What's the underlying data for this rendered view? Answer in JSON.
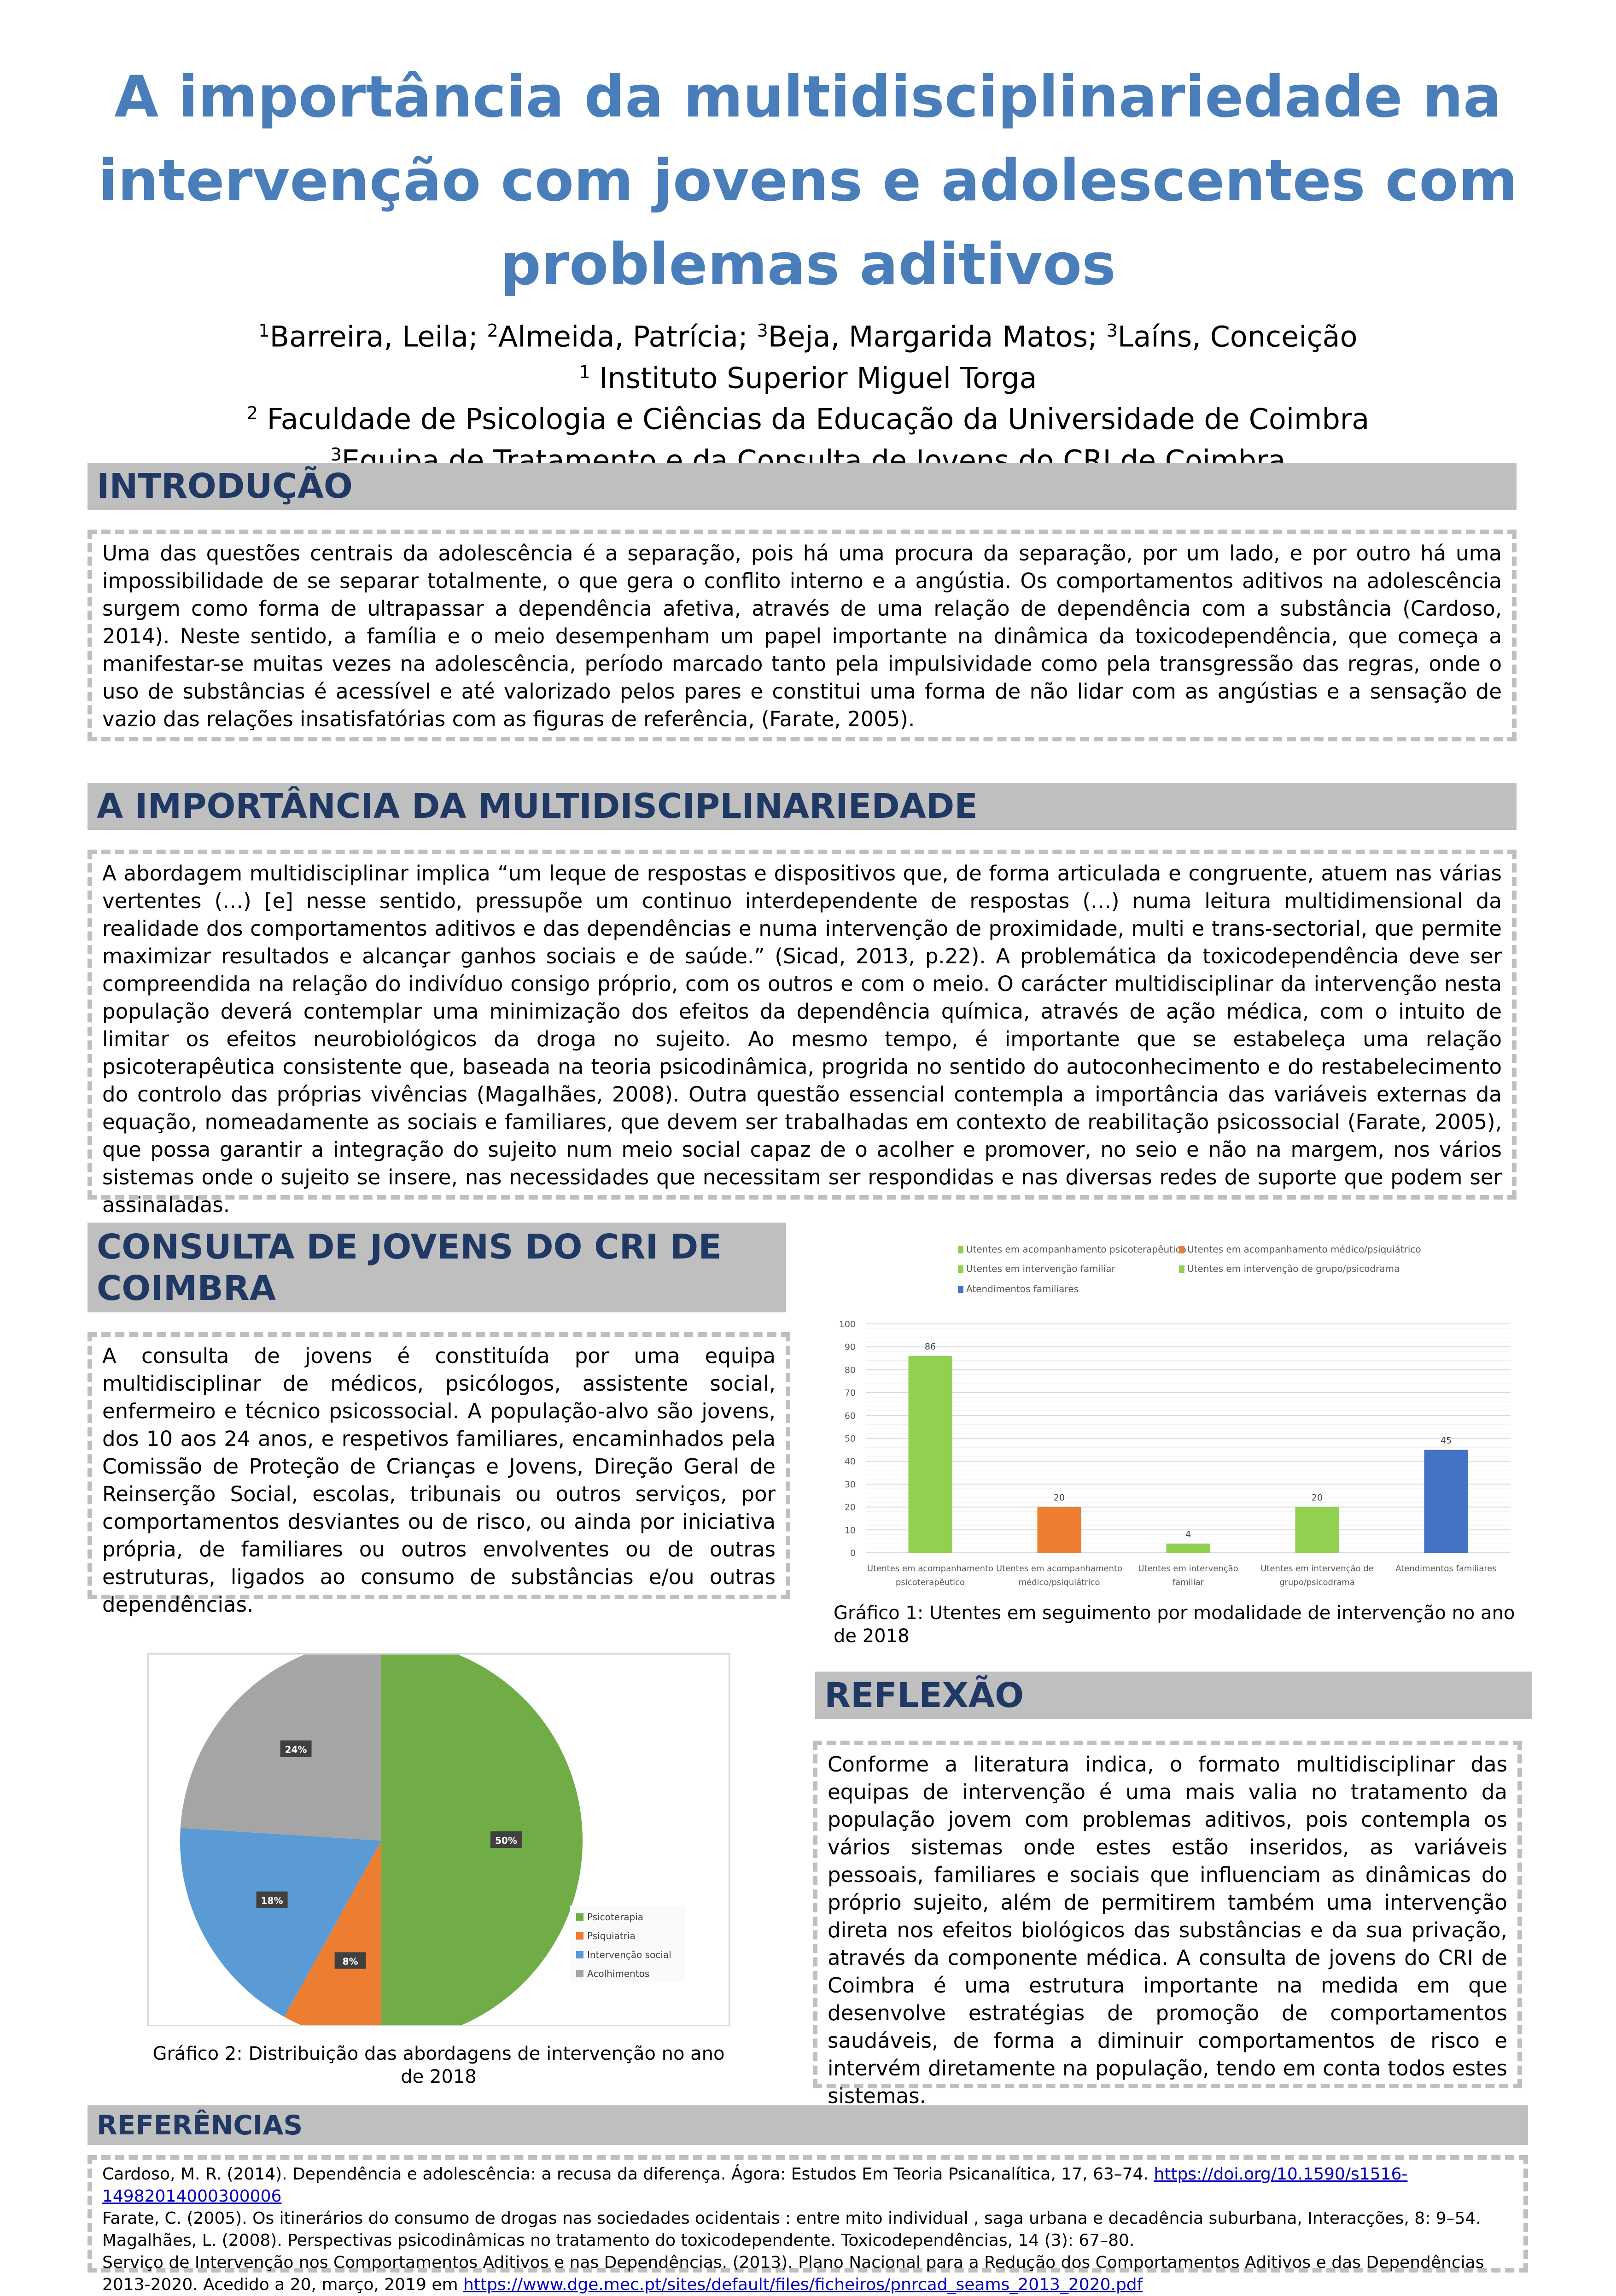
{
  "title": "A importância da multidisciplinariedade na intervenção com jovens e adolescentes com problemas aditivos",
  "authors": [
    {
      "sup": "1",
      "name": "Barreira, Leila; "
    },
    {
      "sup": "2",
      "name": "Almeida, Patrícia; "
    },
    {
      "sup": "3",
      "name": "Beja, Margarida Matos; "
    },
    {
      "sup": "3",
      "name": "Laíns, Conceição"
    }
  ],
  "affiliations": [
    {
      "sup": "1",
      "name": " Instituto Superior Miguel Torga"
    },
    {
      "sup": "2",
      "name": " Faculdade de Psicologia e Ciências da Educação da Universidade de Coimbra"
    },
    {
      "sup": "3",
      "name": "Equipa de Tratamento e da Consulta de Jovens do CRI de Coimbra"
    }
  ],
  "sections": {
    "intro": {
      "heading": "INTRODUÇÃO",
      "text": "Uma das questões centrais da adolescência é a separação, pois há uma procura da separação, por um lado, e por outro há uma impossibilidade de se separar totalmente, o que gera o conflito interno e a angústia. Os comportamentos aditivos na adolescência surgem como forma de ultrapassar a dependência afetiva, através de uma relação de dependência com a substância (Cardoso, 2014). Neste sentido, a família e o meio desempenham um papel importante na dinâmica da toxicodependência, que começa a manifestar-se muitas vezes na adolescência, período marcado tanto pela impulsividade como pela transgressão das regras, onde o uso de substâncias é acessível e até valorizado pelos pares e constitui uma forma de não lidar com as angústias e a sensação de vazio das relações insatisfatórias com as figuras de referência, (Farate, 2005)."
    },
    "multi": {
      "heading": "A IMPORTÂNCIA DA MULTIDISCIPLINARIEDADE",
      "text": "A abordagem multidisciplinar implica “um leque de respostas e dispositivos que, de forma articulada e congruente, atuem nas várias vertentes (…) [e] nesse sentido, pressupõe um continuo interdependente de respostas (…) numa leitura multidimensional da realidade dos comportamentos aditivos e das dependências e numa intervenção de proximidade, multi e trans-sectorial, que permite maximizar resultados e alcançar ganhos sociais e de saúde.”  (Sicad, 2013, p.22). A problemática da toxicodependência deve ser compreendida na relação do indivíduo consigo próprio, com os outros e com o meio. O carácter multidisciplinar da intervenção nesta população deverá contemplar uma minimização dos efeitos da dependência química, através de ação médica, com o intuito de limitar os efeitos neurobiológicos da droga no sujeito. Ao mesmo tempo, é importante que se estabeleça uma relação psicoterapêutica consistente que, baseada na teoria psicodinâmica, progrida no sentido do autoconhecimento e do restabelecimento do controlo das próprias vivências (Magalhães, 2008). Outra questão essencial contempla a importância das variáveis externas da equação, nomeadamente as sociais e familiares, que devem ser trabalhadas em contexto de reabilitação psicossocial (Farate, 2005), que possa garantir a integração do sujeito num meio social capaz de o acolher e promover, no seio e não na margem, nos vários sistemas onde o sujeito se insere, nas necessidades que necessitam ser respondidas e nas diversas redes de suporte que podem ser assinaladas."
    },
    "consulta": {
      "heading": "CONSULTA DE JOVENS DO CRI DE COIMBRA",
      "text": "A consulta de jovens é constituída por uma equipa multidisciplinar de médicos, psicólogos, assistente social, enfermeiro e técnico psicossocial. A população-alvo são jovens, dos 10 aos 24 anos, e respetivos familiares, encaminhados pela Comissão de Proteção de Crianças e Jovens, Direção Geral de Reinserção Social, escolas, tribunais ou outros serviços, por comportamentos desviantes ou de risco, ou ainda por iniciativa própria, de familiares ou outros envolventes ou de outras estruturas, ligados ao consumo de substâncias e/ou outras dependências."
    },
    "reflexao": {
      "heading": "REFLEXÃO",
      "text": "Conforme a literatura indica, o formato multidisciplinar das equipas de intervenção é uma mais valia no tratamento da população jovem com problemas aditivos, pois contempla os vários sistemas onde estes estão inseridos, as variáveis pessoais, familiares e sociais que influenciam as dinâmicas do próprio sujeito, além de permitirem também uma intervenção direta nos efeitos biológicos das substâncias e da sua privação, através da componente médica. A consulta de jovens do CRI de Coimbra é uma estrutura importante na medida em que desenvolve estratégias de promoção de comportamentos saudáveis, de forma a diminuir comportamentos de risco e intervém diretamente na população, tendo em conta todos estes sistemas."
    },
    "refs": {
      "heading": "REFERÊNCIAS",
      "items": [
        {
          "text": "Cardoso, M. R. (2014). Dependência e adolescência: a recusa da diferença. Ágora: Estudos Em Teoria Psicanalítica, 17, 63–74. ",
          "link": "https://doi.org/10.1590/s1516-14982014000300006"
        },
        {
          "text": "Farate, C. (2005). Os itinerários do consumo de drogas nas sociedades ocidentais : entre mito individual , saga urbana e decadência suburbana, Interacções, 8: 9–54.",
          "link": ""
        },
        {
          "text": "Magalhães, L. (2008). Perspectivas psicodinâmicas no tratamento do toxicodependente. Toxicodependências, 14 (3): 67–80.",
          "link": ""
        },
        {
          "text": "Serviço de Intervenção nos Comportamentos Aditivos e nas Dependências. (2013). Plano Nacional para a Redução dos Comportamentos Aditivos e das Dependências 2013-2020. Acedido a 20, março, 2019 em ",
          "link": "https://www.dge.mec.pt/sites/default/files/ficheiros/pnrcad_seams_2013_2020.pdf"
        }
      ]
    }
  },
  "chart_data": [
    {
      "type": "bar",
      "caption": "Gráfico 1: Utentes em  seguimento por modalidade de intervenção no ano de 2018",
      "categories": [
        "Utentes em acompanhamento psicoterapêutico",
        "Utentes em acompanhamento médico/psiquiátrico",
        "Utentes em intervenção familiar",
        "Utentes em intervenção de grupo/psicodrama",
        "Atendimentos familiares"
      ],
      "values": [
        86,
        20,
        4,
        20,
        45
      ],
      "colors": [
        "#92d050",
        "#ed7d31",
        "#92d050",
        "#92d050",
        "#4472c4"
      ],
      "ylim": [
        0,
        100
      ],
      "yticks": [
        0,
        10,
        20,
        30,
        40,
        50,
        60,
        70,
        80,
        90,
        100
      ],
      "grid": true,
      "legend": "top"
    },
    {
      "type": "pie",
      "caption": "Gráfico 2: Distribuição das abordagens de intervenção no ano de 2018",
      "labels": [
        "Psicoterapia",
        "Psiquiatria",
        "Intervenção social",
        "Acolhimentos"
      ],
      "values": [
        50,
        8,
        18,
        24
      ],
      "colors": [
        "#70ad47",
        "#ed7d31",
        "#5b9bd5",
        "#a5a5a5"
      ],
      "legend": "bottom-right"
    }
  ]
}
